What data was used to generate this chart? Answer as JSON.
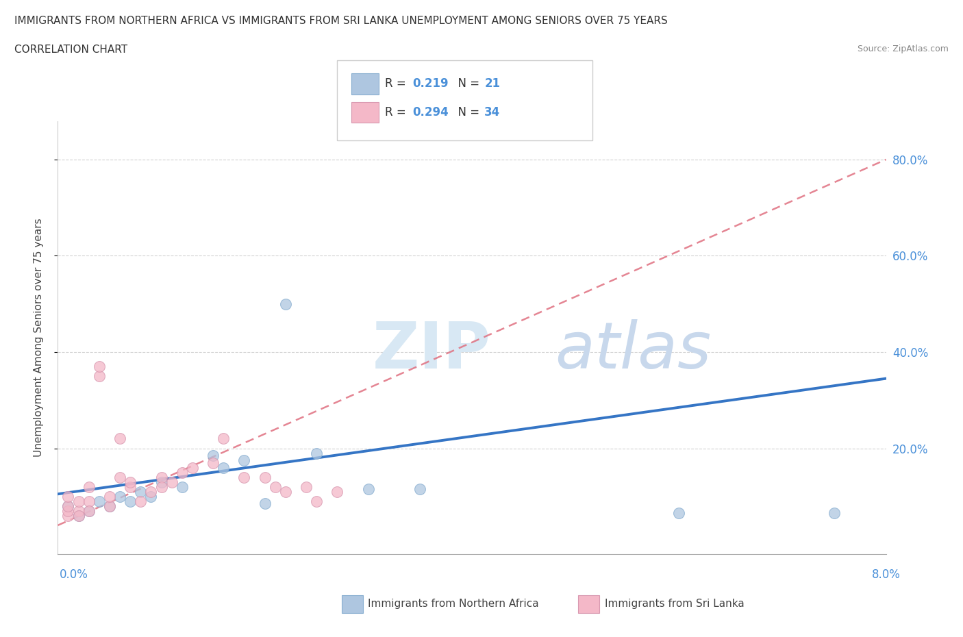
{
  "title_line1": "IMMIGRANTS FROM NORTHERN AFRICA VS IMMIGRANTS FROM SRI LANKA UNEMPLOYMENT AMONG SENIORS OVER 75 YEARS",
  "title_line2": "CORRELATION CHART",
  "source": "Source: ZipAtlas.com",
  "ylabel": "Unemployment Among Seniors over 75 years",
  "ytick_labels": [
    "20.0%",
    "40.0%",
    "60.0%",
    "80.0%"
  ],
  "ytick_values": [
    0.2,
    0.4,
    0.6,
    0.8
  ],
  "xlim": [
    0.0,
    0.08
  ],
  "ylim": [
    -0.02,
    0.88
  ],
  "blue_color": "#aec6e0",
  "pink_color": "#f4b8c8",
  "blue_line_color": "#3575c5",
  "pink_line_color": "#e07080",
  "watermark_zip": "ZIP",
  "watermark_atlas": "atlas",
  "watermark_color_zip": "#d8e8f4",
  "watermark_color_atlas": "#c8d8ec",
  "background_color": "#ffffff",
  "blue_scatter_x": [
    0.001,
    0.002,
    0.003,
    0.004,
    0.005,
    0.006,
    0.007,
    0.008,
    0.009,
    0.01,
    0.012,
    0.015,
    0.016,
    0.018,
    0.02,
    0.022,
    0.025,
    0.03,
    0.035,
    0.06,
    0.075
  ],
  "blue_scatter_y": [
    0.08,
    0.06,
    0.07,
    0.09,
    0.08,
    0.1,
    0.09,
    0.11,
    0.1,
    0.13,
    0.12,
    0.185,
    0.16,
    0.175,
    0.085,
    0.5,
    0.19,
    0.115,
    0.115,
    0.065,
    0.065
  ],
  "pink_scatter_x": [
    0.001,
    0.001,
    0.001,
    0.001,
    0.002,
    0.002,
    0.002,
    0.003,
    0.003,
    0.003,
    0.004,
    0.004,
    0.005,
    0.005,
    0.006,
    0.006,
    0.007,
    0.007,
    0.008,
    0.009,
    0.01,
    0.01,
    0.011,
    0.012,
    0.013,
    0.015,
    0.016,
    0.018,
    0.02,
    0.021,
    0.022,
    0.024,
    0.025,
    0.027
  ],
  "pink_scatter_y": [
    0.06,
    0.07,
    0.08,
    0.1,
    0.07,
    0.09,
    0.06,
    0.12,
    0.09,
    0.07,
    0.35,
    0.37,
    0.08,
    0.1,
    0.22,
    0.14,
    0.12,
    0.13,
    0.09,
    0.11,
    0.14,
    0.12,
    0.13,
    0.15,
    0.16,
    0.17,
    0.22,
    0.14,
    0.14,
    0.12,
    0.11,
    0.12,
    0.09,
    0.11
  ],
  "blue_trend_x0": 0.0,
  "blue_trend_y0": 0.105,
  "blue_trend_x1": 0.08,
  "blue_trend_y1": 0.345,
  "pink_trend_x0": 0.0,
  "pink_trend_y0": 0.04,
  "pink_trend_x1": 0.08,
  "pink_trend_y1": 0.8
}
